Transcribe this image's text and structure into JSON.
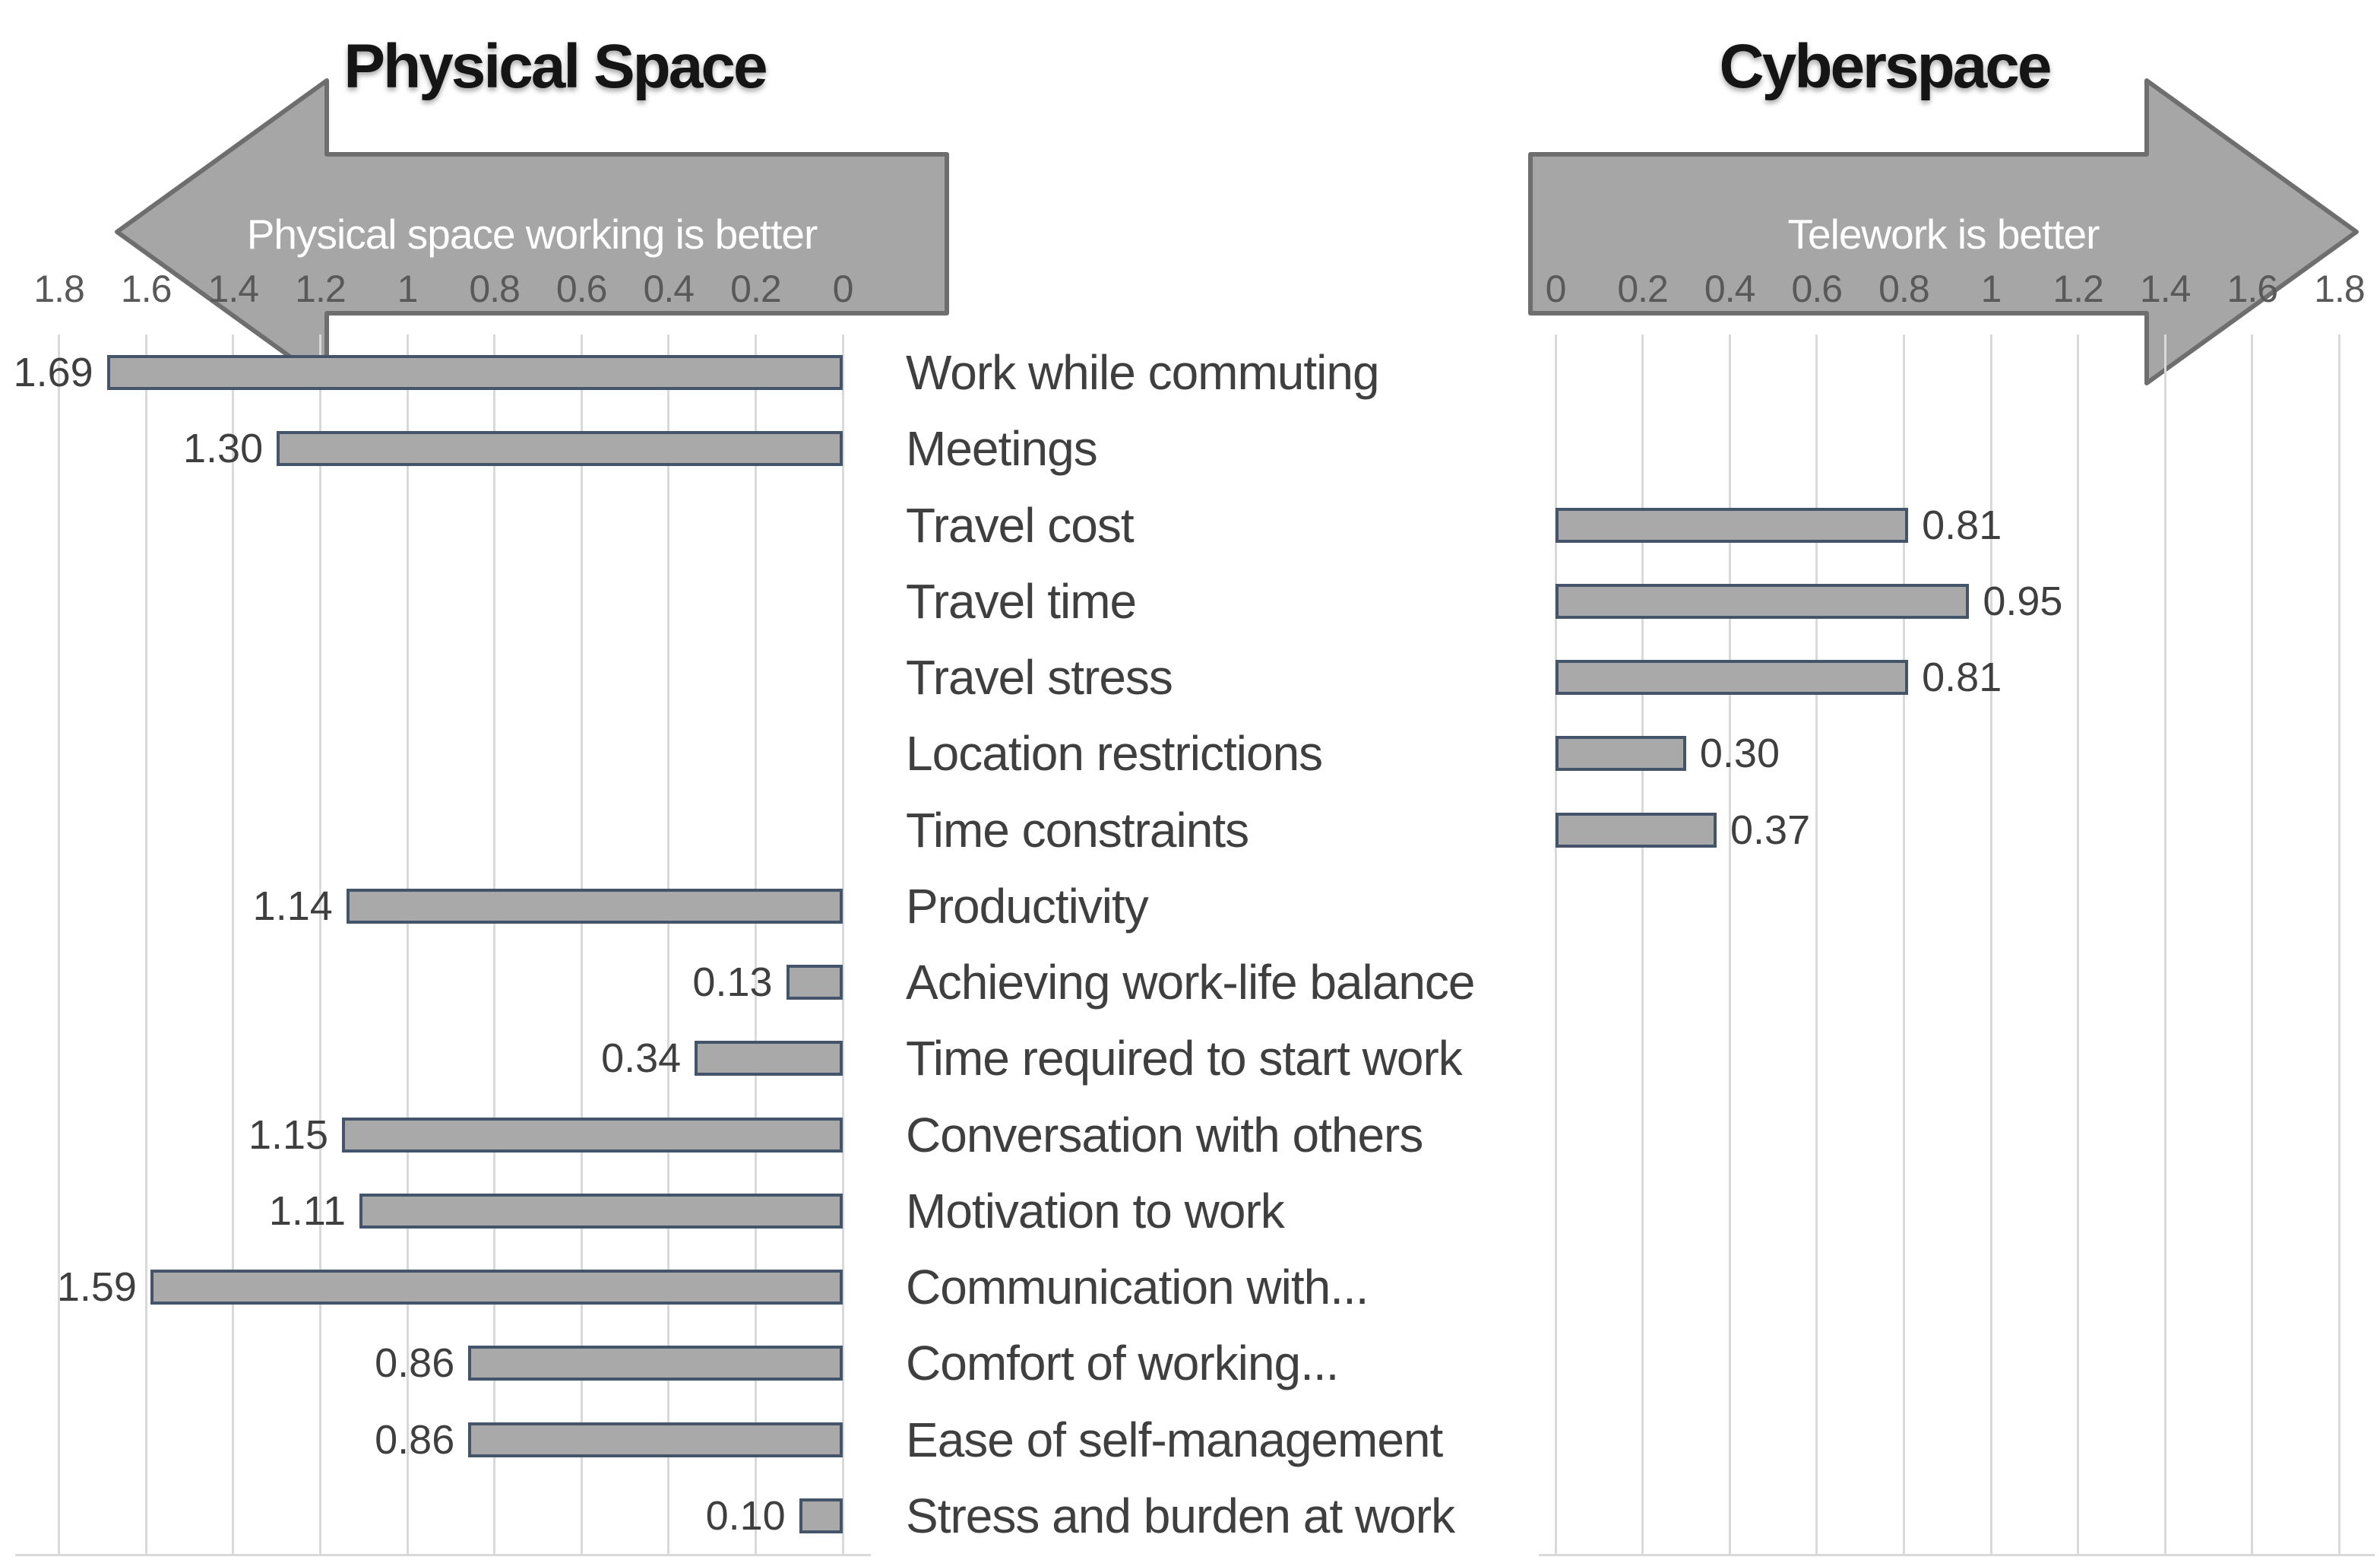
{
  "physical": {
    "title": "Physical Space",
    "arrow_label": "Physical space working is better"
  },
  "cyber": {
    "title": "Cyberspace",
    "arrow_label": "Telework is better"
  },
  "colors": {
    "bar_fill": "#a9a9a9",
    "bar_border": "#44546a",
    "arrow_fill": "#a6a6a6",
    "arrow_border": "#6e6e6e",
    "gridline": "#d9d9d9",
    "tick_text": "#595959",
    "label_text": "#3f3f3f",
    "arrow_text": "#ffffff",
    "title_text": "#151515"
  },
  "chart_data": {
    "type": "bar",
    "orientation": "horizontal",
    "layout_hint": "diverging dual axes, gridlines on, value labels at bar ends",
    "axis": {
      "min": 0,
      "max": 1.8,
      "tick_step": 0.2
    },
    "left_axis_ticks": [
      "1.8",
      "1.6",
      "1.4",
      "1.2",
      "1",
      "0.8",
      "0.6",
      "0.4",
      "0.2",
      "0"
    ],
    "right_axis_ticks": [
      "0",
      "0.2",
      "0.4",
      "0.6",
      "0.8",
      "1",
      "1.2",
      "1.4",
      "1.6",
      "1.8"
    ],
    "series": [
      {
        "name": "Physical space working is better",
        "side": "physical"
      },
      {
        "name": "Telework is better",
        "side": "cyber"
      }
    ],
    "items": [
      {
        "label": "Work while commuting",
        "side": "physical",
        "value": 1.69
      },
      {
        "label": "Meetings",
        "side": "physical",
        "value": 1.3
      },
      {
        "label": "Travel cost",
        "side": "cyber",
        "value": 0.81
      },
      {
        "label": "Travel time",
        "side": "cyber",
        "value": 0.95
      },
      {
        "label": "Travel stress",
        "side": "cyber",
        "value": 0.81
      },
      {
        "label": "Location restrictions",
        "side": "cyber",
        "value": 0.3
      },
      {
        "label": "Time constraints",
        "side": "cyber",
        "value": 0.37
      },
      {
        "label": "Productivity",
        "side": "physical",
        "value": 1.14
      },
      {
        "label": "Achieving work-life balance",
        "side": "physical",
        "value": 0.13
      },
      {
        "label": "Time required to start work",
        "side": "physical",
        "value": 0.34
      },
      {
        "label": "Conversation with others",
        "side": "physical",
        "value": 1.15
      },
      {
        "label": "Motivation to work",
        "side": "physical",
        "value": 1.11
      },
      {
        "label": "Communication with...",
        "side": "physical",
        "value": 1.59
      },
      {
        "label": "Comfort of working...",
        "side": "physical",
        "value": 0.86
      },
      {
        "label": "Ease of self-management",
        "side": "physical",
        "value": 0.86
      },
      {
        "label": "Stress and burden at work",
        "side": "physical",
        "value": 0.1
      }
    ]
  }
}
